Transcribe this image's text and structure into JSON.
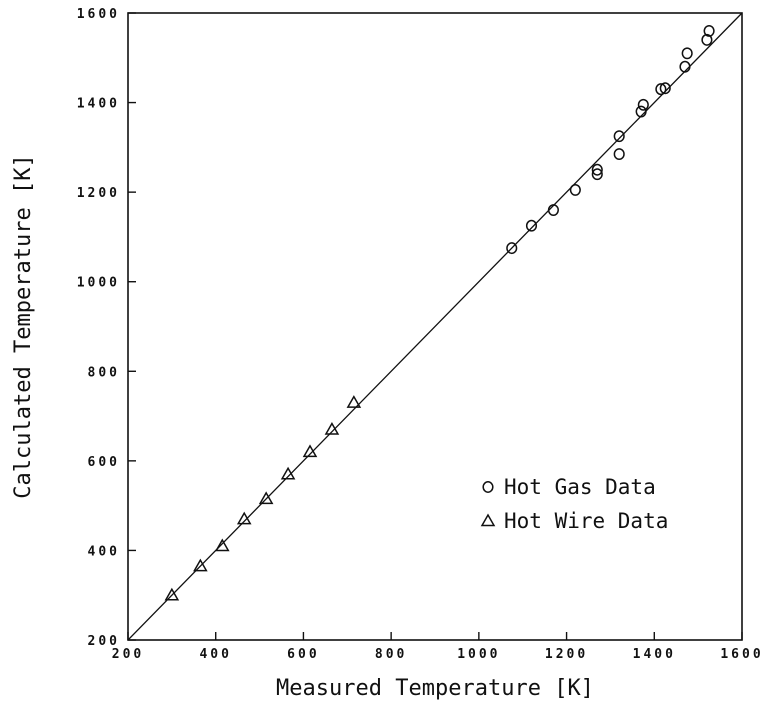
{
  "chart_data": {
    "type": "scatter",
    "xlabel": "Measured Temperature [K]",
    "ylabel": "Calculated Temperature [K]",
    "xlim": [
      200,
      1600
    ],
    "ylim": [
      200,
      1600
    ],
    "x_ticks": [
      "200",
      "400",
      "600",
      "800",
      "1000",
      "1200",
      "1400",
      "1600"
    ],
    "y_ticks": [
      "200",
      "400",
      "600",
      "800",
      "1000",
      "1200",
      "1400",
      "1600"
    ],
    "grid": false,
    "legend_position": "lower-right",
    "reference_line": {
      "from": [
        200,
        200
      ],
      "to": [
        1600,
        1600
      ]
    },
    "series": [
      {
        "name": "Hot Gas Data",
        "marker": "circle",
        "points": [
          [
            1075,
            1075
          ],
          [
            1120,
            1125
          ],
          [
            1170,
            1160
          ],
          [
            1220,
            1205
          ],
          [
            1270,
            1240
          ],
          [
            1270,
            1250
          ],
          [
            1320,
            1285
          ],
          [
            1320,
            1325
          ],
          [
            1370,
            1380
          ],
          [
            1375,
            1395
          ],
          [
            1415,
            1430
          ],
          [
            1425,
            1432
          ],
          [
            1470,
            1480
          ],
          [
            1475,
            1510
          ],
          [
            1520,
            1540
          ],
          [
            1525,
            1560
          ]
        ]
      },
      {
        "name": "Hot Wire Data",
        "marker": "triangle",
        "points": [
          [
            300,
            300
          ],
          [
            365,
            365
          ],
          [
            415,
            410
          ],
          [
            465,
            470
          ],
          [
            515,
            515
          ],
          [
            565,
            570
          ],
          [
            615,
            620
          ],
          [
            665,
            670
          ],
          [
            715,
            730
          ]
        ]
      }
    ]
  }
}
